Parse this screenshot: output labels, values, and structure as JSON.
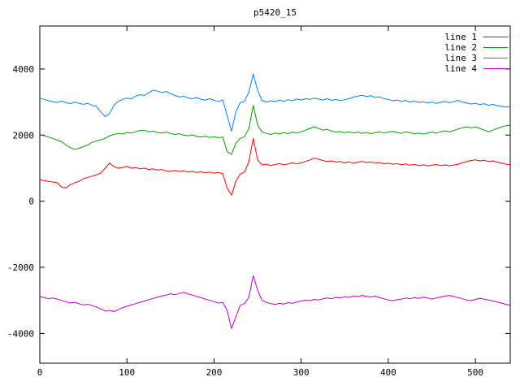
{
  "chart_data": {
    "type": "line",
    "title": "p5420_15",
    "xlabel": "",
    "ylabel": "",
    "grid": false,
    "legend_position": "top-right",
    "xlim": [
      0,
      540
    ],
    "ylim": [
      -4900,
      5300
    ],
    "xticks": [
      0,
      100,
      200,
      300,
      400,
      500
    ],
    "yticks": [
      -4000,
      -2000,
      0,
      2000,
      4000
    ],
    "x_start": 0,
    "x_step": 5,
    "series": [
      {
        "name": "line 1",
        "color": "#ff0000",
        "values": [
          650,
          620,
          600,
          580,
          560,
          420,
          400,
          500,
          560,
          600,
          680,
          720,
          760,
          800,
          850,
          1000,
          1150,
          1050,
          1000,
          1020,
          1050,
          1000,
          1020,
          980,
          1000,
          960,
          980,
          940,
          960,
          920,
          900,
          930,
          900,
          920,
          880,
          900,
          870,
          890,
          860,
          880,
          850,
          870,
          830,
          400,
          180,
          600,
          820,
          880,
          1200,
          1900,
          1250,
          1100,
          1120,
          1080,
          1110,
          1140,
          1100,
          1130,
          1160,
          1130,
          1160,
          1200,
          1250,
          1300,
          1270,
          1230,
          1200,
          1220,
          1180,
          1200,
          1160,
          1190,
          1150,
          1180,
          1200,
          1170,
          1190,
          1150,
          1170,
          1130,
          1150,
          1120,
          1140,
          1100,
          1130,
          1090,
          1110,
          1080,
          1100,
          1070,
          1090,
          1110,
          1080,
          1100,
          1070,
          1090,
          1120,
          1160,
          1200,
          1230,
          1250,
          1220,
          1240,
          1200,
          1220,
          1180,
          1150,
          1120,
          1100
        ]
      },
      {
        "name": "line 2",
        "color": "#00a000",
        "values": [
          2020,
          1980,
          1940,
          1900,
          1850,
          1800,
          1700,
          1620,
          1570,
          1600,
          1650,
          1700,
          1780,
          1820,
          1860,
          1900,
          1980,
          2020,
          2050,
          2030,
          2080,
          2060,
          2100,
          2140,
          2150,
          2100,
          2120,
          2080,
          2060,
          2090,
          2050,
          2020,
          2040,
          2000,
          1980,
          2010,
          1960,
          1940,
          1970,
          1930,
          1950,
          1920,
          1940,
          1500,
          1420,
          1750,
          1900,
          1950,
          2200,
          2900,
          2300,
          2100,
          2050,
          2020,
          2060,
          2030,
          2080,
          2040,
          2090,
          2060,
          2100,
          2150,
          2200,
          2250,
          2200,
          2150,
          2170,
          2120,
          2090,
          2110,
          2070,
          2100,
          2060,
          2090,
          2050,
          2080,
          2040,
          2070,
          2100,
          2060,
          2090,
          2110,
          2080,
          2050,
          2100,
          2070,
          2040,
          2060,
          2030,
          2060,
          2090,
          2060,
          2100,
          2130,
          2100,
          2140,
          2180,
          2220,
          2250,
          2220,
          2250,
          2200,
          2150,
          2100,
          2150,
          2200,
          2250,
          2280,
          2300
        ]
      },
      {
        "name": "line 3",
        "color": "#0080ff",
        "values": [
          3120,
          3080,
          3040,
          3010,
          2990,
          3030,
          2980,
          2950,
          3000,
          2960,
          2930,
          2960,
          2900,
          2870,
          2700,
          2560,
          2650,
          2900,
          3020,
          3080,
          3120,
          3100,
          3180,
          3220,
          3200,
          3280,
          3360,
          3330,
          3290,
          3320,
          3250,
          3200,
          3150,
          3180,
          3120,
          3100,
          3140,
          3080,
          3060,
          3100,
          3050,
          3020,
          3060,
          2600,
          2120,
          2700,
          2980,
          3020,
          3300,
          3850,
          3350,
          3050,
          3000,
          3040,
          3010,
          3060,
          3020,
          3070,
          3040,
          3090,
          3060,
          3100,
          3080,
          3120,
          3090,
          3060,
          3100,
          3050,
          3080,
          3040,
          3070,
          3100,
          3150,
          3180,
          3200,
          3170,
          3190,
          3140,
          3160,
          3100,
          3080,
          3040,
          3060,
          3020,
          3050,
          3000,
          3030,
          2990,
          3010,
          2970,
          3000,
          2960,
          2990,
          3020,
          2980,
          3010,
          3050,
          3000,
          2970,
          2940,
          2960,
          2920,
          2950,
          2900,
          2930,
          2890,
          2870,
          2850,
          2860
        ]
      },
      {
        "name": "line 4",
        "color": "#c000c0",
        "values": [
          -2880,
          -2920,
          -2950,
          -2930,
          -2960,
          -3000,
          -3040,
          -3080,
          -3060,
          -3100,
          -3140,
          -3120,
          -3160,
          -3200,
          -3260,
          -3320,
          -3300,
          -3340,
          -3280,
          -3220,
          -3180,
          -3140,
          -3100,
          -3060,
          -3020,
          -2980,
          -2940,
          -2900,
          -2870,
          -2840,
          -2800,
          -2830,
          -2790,
          -2760,
          -2800,
          -2840,
          -2880,
          -2920,
          -2960,
          -3000,
          -3040,
          -3080,
          -3060,
          -3300,
          -3850,
          -3500,
          -3150,
          -3100,
          -2900,
          -2250,
          -2700,
          -3000,
          -3060,
          -3100,
          -3120,
          -3090,
          -3110,
          -3070,
          -3090,
          -3050,
          -3020,
          -2990,
          -3010,
          -2970,
          -2990,
          -2950,
          -2930,
          -2950,
          -2910,
          -2930,
          -2890,
          -2910,
          -2870,
          -2890,
          -2850,
          -2880,
          -2900,
          -2870,
          -2920,
          -2950,
          -2990,
          -3010,
          -2980,
          -2960,
          -2930,
          -2950,
          -2920,
          -2940,
          -2900,
          -2930,
          -2960,
          -2930,
          -2900,
          -2870,
          -2850,
          -2880,
          -2920,
          -2950,
          -2990,
          -3010,
          -2970,
          -2940,
          -2960,
          -2990,
          -3020,
          -3050,
          -3080,
          -3120,
          -3150
        ]
      }
    ]
  }
}
